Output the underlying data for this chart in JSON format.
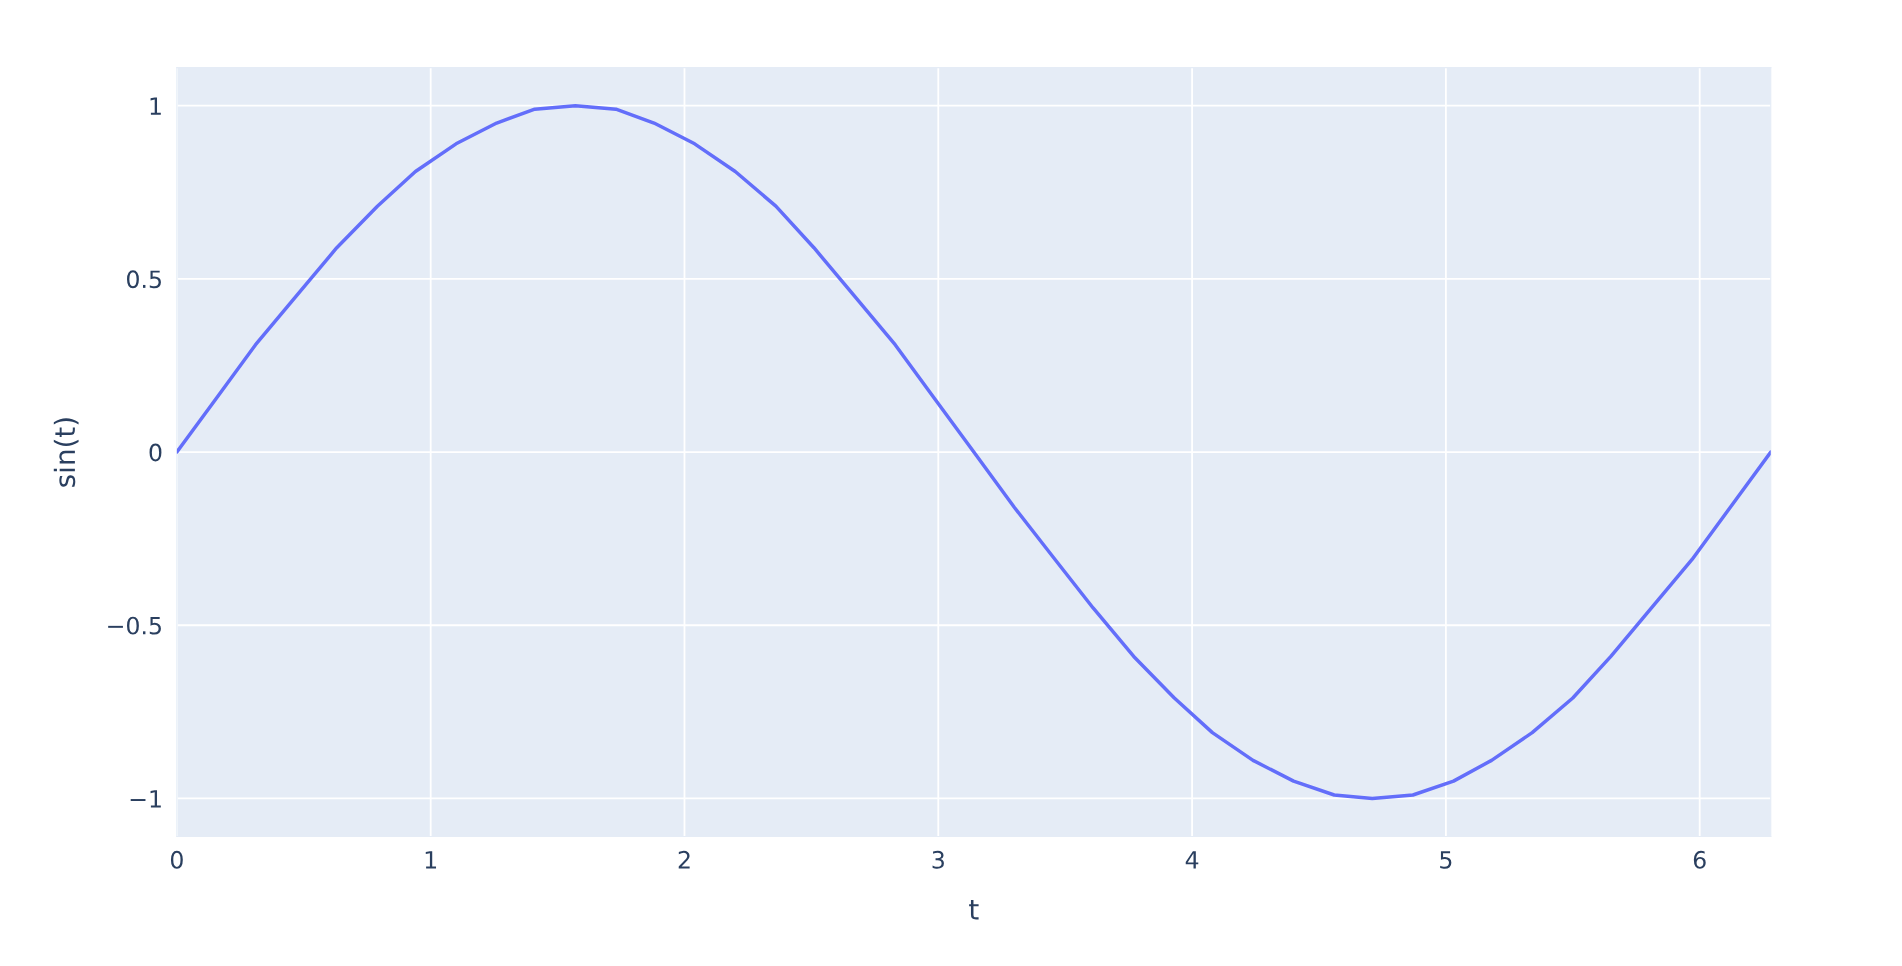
{
  "chart_data": {
    "type": "line",
    "xlabel": "t",
    "ylabel": "sin(t)",
    "x": [
      0,
      0.16,
      0.31,
      0.47,
      0.63,
      0.79,
      0.94,
      1.1,
      1.26,
      1.41,
      1.57,
      1.73,
      1.88,
      2.04,
      2.2,
      2.36,
      2.51,
      2.67,
      2.83,
      2.98,
      3.14,
      3.3,
      3.46,
      3.61,
      3.77,
      3.93,
      4.08,
      4.24,
      4.4,
      4.56,
      4.71,
      4.87,
      5.03,
      5.18,
      5.34,
      5.5,
      5.65,
      5.81,
      5.97,
      6.12,
      6.28
    ],
    "series": [
      {
        "color": "#636efa",
        "values": [
          0,
          0.16,
          0.31,
          0.45,
          0.59,
          0.71,
          0.81,
          0.89,
          0.95,
          0.99,
          1,
          0.99,
          0.95,
          0.89,
          0.81,
          0.71,
          0.59,
          0.45,
          0.31,
          0.16,
          0,
          -0.16,
          -0.31,
          -0.45,
          -0.59,
          -0.71,
          -0.81,
          -0.89,
          -0.95,
          -0.99,
          -1,
          -0.99,
          -0.95,
          -0.89,
          -0.81,
          -0.71,
          -0.59,
          -0.45,
          -0.31,
          -0.16,
          0
        ]
      }
    ],
    "xlim": [
      0,
      6.28
    ],
    "xticks": [
      0,
      1,
      2,
      3,
      4,
      5,
      6
    ],
    "ylim": [
      -1.11,
      1.11
    ],
    "yticks": [
      {
        "value": -1,
        "label": "−1"
      },
      {
        "value": -0.5,
        "label": "−0.5"
      },
      0,
      0.5,
      1
    ],
    "grid": true,
    "line_style": "solid",
    "marker": "none"
  }
}
